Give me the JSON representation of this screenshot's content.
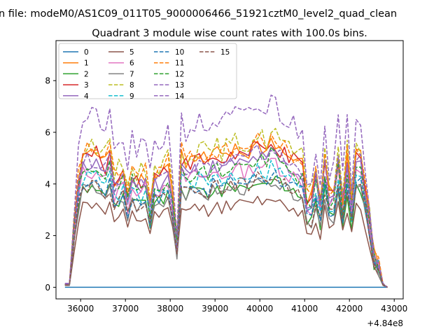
{
  "chart_data": {
    "type": "line",
    "suptitle": "n file: modeM0/AS1C09_011T05_9000006466_51921cztM0_level2_quad_clean",
    "title": "Quadrant 3 module wise count rates with 100.0s bins.",
    "xlabel": "",
    "ylabel": "",
    "x_offset_label": "+4.84e8",
    "xlim": [
      35450,
      43200
    ],
    "ylim": [
      -0.45,
      9.55
    ],
    "x_ticks": [
      36000,
      37000,
      38000,
      39000,
      40000,
      41000,
      42000,
      43000
    ],
    "x_tick_labels": [
      "36000",
      "37000",
      "38000",
      "39000",
      "40000",
      "41000",
      "42000",
      "43000"
    ],
    "y_ticks": [
      0,
      2,
      4,
      6,
      8
    ],
    "y_tick_labels": [
      "0",
      "2",
      "4",
      "6",
      "8"
    ],
    "grid": false,
    "legend_position": "upper-left",
    "legend_columns": 4,
    "colors": [
      "#1f77b4",
      "#ff7f0e",
      "#2ca02c",
      "#d62728",
      "#9467bd",
      "#8c564b",
      "#e377c2",
      "#7f7f7f",
      "#bcbd22",
      "#17becf",
      "#1f77b4",
      "#ff7f0e",
      "#2ca02c",
      "#9467bd",
      "#9467bd",
      "#8c564b"
    ],
    "x_start": 35650,
    "x_step": 100,
    "num_points": 73,
    "profile": {
      "t": [
        35650,
        35750,
        35900,
        36000,
        36200,
        36400,
        36550,
        36650,
        36800,
        36900,
        37050,
        37200,
        37300,
        37400,
        37550,
        37700,
        37800,
        37900,
        38050,
        38150,
        38250,
        38350,
        38500,
        38700,
        38850,
        39000,
        39150,
        39300,
        39500,
        39700,
        39850,
        40000,
        40150,
        40300,
        40400,
        40550,
        40700,
        40800,
        40900,
        41000,
        41100,
        41200,
        41350,
        41450,
        41600,
        41750,
        41850,
        41950,
        42050,
        42150,
        42250,
        42400,
        42550,
        42650,
        42750,
        42850
      ],
      "v": [
        0.02,
        0.02,
        0.55,
        0.85,
        0.86,
        0.87,
        0.8,
        0.85,
        0.6,
        0.84,
        0.6,
        0.83,
        0.58,
        0.82,
        0.55,
        0.83,
        0.62,
        0.9,
        0.6,
        0.3,
        0.85,
        0.8,
        0.82,
        0.84,
        0.8,
        0.87,
        0.82,
        0.86,
        0.88,
        0.85,
        0.9,
        0.92,
        0.88,
        0.98,
        0.9,
        0.86,
        0.82,
        0.84,
        0.75,
        0.82,
        0.32,
        0.82,
        0.55,
        0.82,
        0.5,
        0.86,
        0.55,
        0.83,
        0.55,
        0.9,
        0.85,
        0.55,
        0.2,
        0.15,
        0.02,
        0.0
      ]
    },
    "series": [
      {
        "name": "0",
        "style": "solid",
        "scale": 0.0,
        "seed": 0
      },
      {
        "name": "1",
        "style": "solid",
        "scale": 6.0,
        "seed": 1
      },
      {
        "name": "2",
        "style": "solid",
        "scale": 4.5,
        "seed": 2
      },
      {
        "name": "3",
        "style": "solid",
        "scale": 5.9,
        "seed": 3
      },
      {
        "name": "4",
        "style": "solid",
        "scale": 5.5,
        "seed": 4
      },
      {
        "name": "5",
        "style": "solid",
        "scale": 3.7,
        "seed": 5
      },
      {
        "name": "6",
        "style": "solid",
        "scale": 5.2,
        "seed": 6
      },
      {
        "name": "7",
        "style": "solid",
        "scale": 4.4,
        "seed": 7
      },
      {
        "name": "8",
        "style": "dashed",
        "scale": 6.4,
        "seed": 8
      },
      {
        "name": "9",
        "style": "dashed",
        "scale": 5.0,
        "seed": 9
      },
      {
        "name": "10",
        "style": "dashed",
        "scale": 4.7,
        "seed": 10
      },
      {
        "name": "11",
        "style": "dashed",
        "scale": 6.2,
        "seed": 11
      },
      {
        "name": "12",
        "style": "dashed",
        "scale": 5.4,
        "seed": 12
      },
      {
        "name": "13",
        "style": "dashed",
        "scale": 5.7,
        "seed": 13
      },
      {
        "name": "14",
        "style": "dashed",
        "scale": 7.6,
        "seed": 14
      },
      {
        "name": "15",
        "style": "dashed",
        "scale": 4.6,
        "seed": 15
      }
    ]
  }
}
